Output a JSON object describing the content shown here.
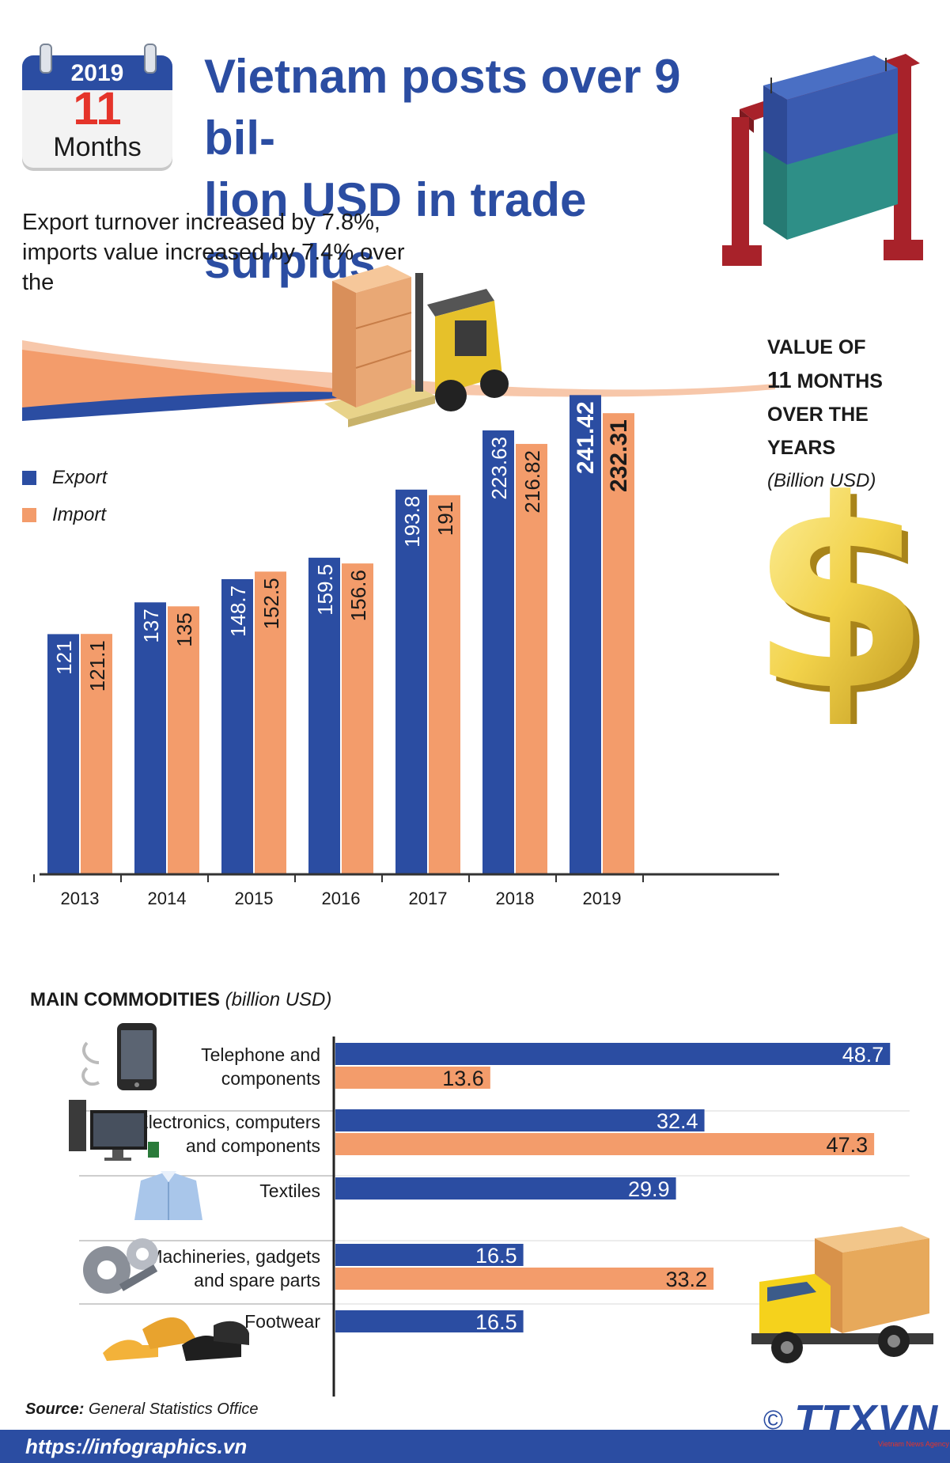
{
  "calendar": {
    "year": "2019",
    "number": "11",
    "unit": "Months"
  },
  "title": "Vietnam posts over 9 billion USD in trade surplus",
  "title_lines": [
    "Vietnam posts over 9 bil-",
    "lion USD in trade surplus"
  ],
  "subtitle_lines": [
    "Export turnover increased by 7.8%,",
    "imports value increased by 7.4% over",
    "the"
  ],
  "value_label": {
    "line1": "VALUE OF",
    "line2_num": "11",
    "line2_text": " MONTHS",
    "line3": "OVER THE YEARS",
    "line4": "(Billion USD)"
  },
  "colors": {
    "export": "#2b4da2",
    "import": "#f39c6b",
    "title": "#2b4da2",
    "accent_red": "#e5342a"
  },
  "icons": [
    "calendar-icon",
    "crane-container-icon",
    "forklift-icon",
    "dollar-sign-icon",
    "phone-icon",
    "computer-icon",
    "shirt-icon",
    "gears-icon",
    "shoes-icon",
    "truck-icon"
  ],
  "chart_data": [
    {
      "type": "bar",
      "categories": [
        "2013",
        "2014",
        "2015",
        "2016",
        "2017",
        "2018",
        "2019"
      ],
      "series": [
        {
          "name": "Export",
          "values": [
            121,
            137,
            148.7,
            159.5,
            193.8,
            223.63,
            241.42
          ]
        },
        {
          "name": "Import",
          "values": [
            121.1,
            135,
            152.5,
            156.6,
            191,
            216.82,
            232.31
          ]
        }
      ],
      "value_labels": {
        "Export": [
          "121",
          "137",
          "148.7",
          "159.5",
          "193.8",
          "223.63",
          "241.42"
        ],
        "Import": [
          "121.1",
          "135",
          "152.5",
          "156.6",
          "191",
          "216.82",
          "232.31"
        ]
      },
      "ylim": [
        0,
        250
      ],
      "legend": "left",
      "grid": false
    },
    {
      "type": "bar",
      "orientation": "horizontal",
      "title": "MAIN COMMODITIES",
      "title_unit": "(billion USD)",
      "categories": [
        {
          "label": "Telephone and components",
          "lines": [
            "Telephone and",
            "components"
          ],
          "export": 48.7,
          "import": 13.6
        },
        {
          "label": "Electronics, computers and components",
          "lines": [
            "Electronics, computers",
            "and components"
          ],
          "export": 32.4,
          "import": 47.3
        },
        {
          "label": "Textiles",
          "lines": [
            "Textiles"
          ],
          "export": 29.9,
          "import": null
        },
        {
          "label": "Machineries, gadgets and spare parts",
          "lines": [
            "Machineries, gadgets",
            "and spare parts"
          ],
          "export": 16.5,
          "import": 33.2
        },
        {
          "label": "Footwear",
          "lines": [
            "Footwear"
          ],
          "export": 16.5,
          "import": null
        }
      ],
      "xlim": [
        0,
        50
      ]
    }
  ],
  "source": {
    "label": "Source:",
    "text": " General Statistics Office"
  },
  "url": "https://infographics.vn",
  "logo": {
    "copyright": "©",
    "name": "TTXVN",
    "tagline": "Vietnam News Agency"
  }
}
